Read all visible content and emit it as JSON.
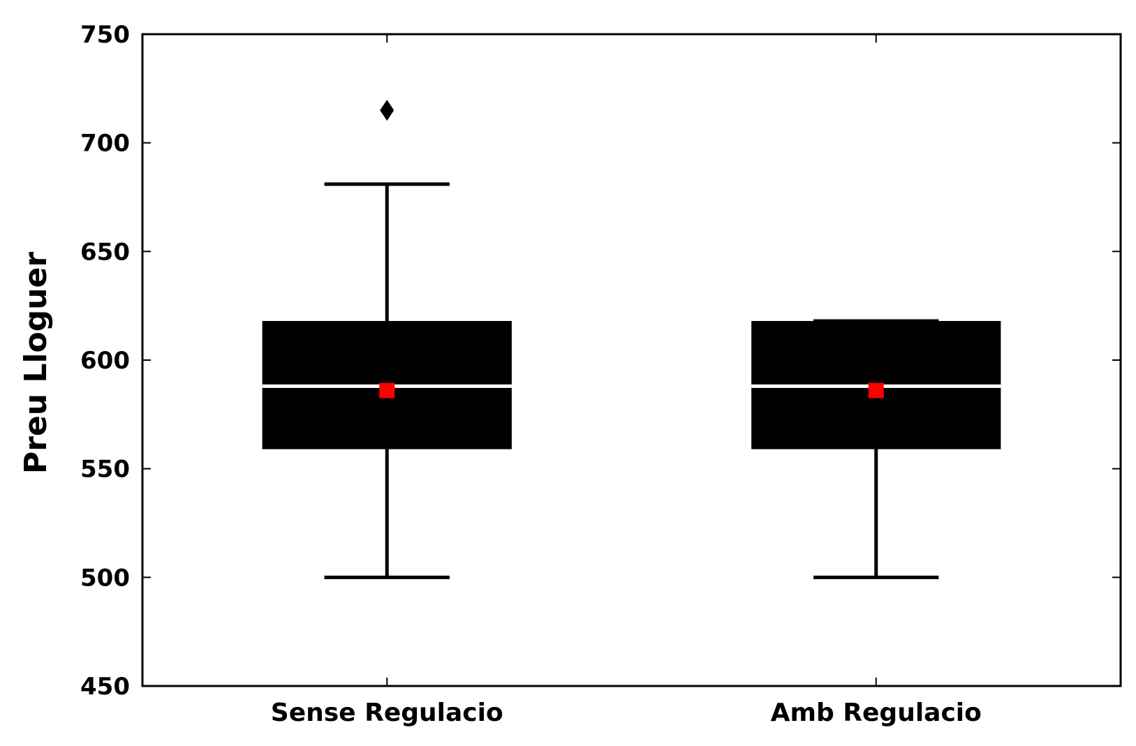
{
  "chart_data": {
    "type": "box",
    "title": "",
    "xlabel": "",
    "ylabel": "Preu Lloguer",
    "ylim": [
      450,
      750
    ],
    "yticks": [
      450,
      500,
      550,
      600,
      650,
      700,
      750
    ],
    "ytick_labels": [
      "450",
      "500",
      "550",
      "600",
      "650",
      "700",
      "750"
    ],
    "grid": false,
    "categories": [
      "Sense Regulacio",
      "Amb Regulacio"
    ],
    "boxes": [
      {
        "category": "Sense Regulacio",
        "whisker_low": 500,
        "q1": 559,
        "median": 588,
        "q3": 618,
        "whisker_high": 681,
        "mean": 586,
        "outliers": [
          715
        ]
      },
      {
        "category": "Amb Regulacio",
        "whisker_low": 500,
        "q1": 559,
        "median": 588,
        "q3": 618,
        "whisker_high": 618,
        "mean": 586,
        "outliers": []
      }
    ],
    "colors": {
      "box": "#000000",
      "median": "#ffffff",
      "mean_marker": "#ff0000",
      "outlier": "#000000"
    }
  }
}
